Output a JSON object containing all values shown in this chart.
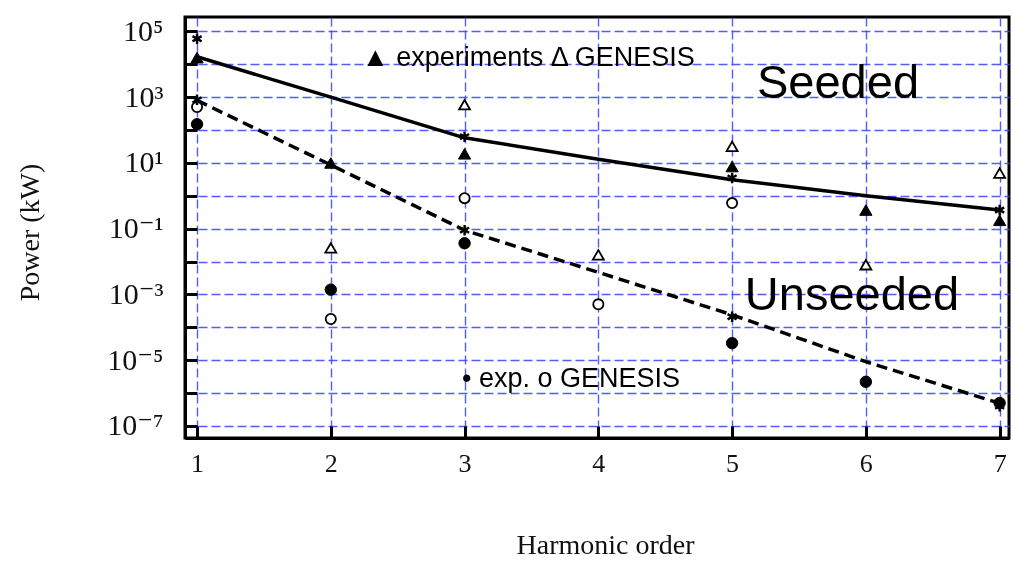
{
  "chart_data": {
    "type": "scatter",
    "xlabel": "Harmonic order",
    "ylabel": "Power (kW)",
    "annotations": [
      "▲ experiments Δ GENESIS",
      "Seeded",
      "Unseeded",
      "• exp. o GENESIS"
    ],
    "xlim": [
      0.91,
      7.07
    ],
    "xticks": [
      1,
      2,
      3,
      4,
      5,
      6,
      7
    ],
    "ylim": [
      4.3e-08,
      275000.0
    ],
    "yticks": [
      {
        "value": 100000,
        "label": "10⁵"
      },
      {
        "value": 10000,
        "label": null
      },
      {
        "value": 1000,
        "label": "10³"
      },
      {
        "value": 100,
        "label": null
      },
      {
        "value": 10,
        "label": "10¹"
      },
      {
        "value": 1,
        "label": null
      },
      {
        "value": 0.1,
        "label": "10⁻¹"
      },
      {
        "value": 0.01,
        "label": null
      },
      {
        "value": 0.001,
        "label": "10⁻³"
      },
      {
        "value": 0.0001,
        "label": null
      },
      {
        "value": 1e-05,
        "label": "10⁻⁵"
      },
      {
        "value": 1e-06,
        "label": null
      },
      {
        "value": 1e-07,
        "label": "10⁻⁷"
      }
    ],
    "log": "y",
    "grid": true,
    "series": [
      {
        "type": "line",
        "line_style": "solid",
        "color": "#000000",
        "x": [
          1,
          2,
          3,
          4,
          5,
          6,
          7
        ],
        "values": [
          17000,
          1000,
          58,
          13,
          3.1,
          1.0,
          0.37
        ]
      },
      {
        "type": "line",
        "line_style": "dashed",
        "color": "#000000",
        "x": [
          1,
          2,
          3,
          4,
          5,
          6,
          7
        ],
        "values": [
          800,
          8.7,
          0.09,
          0.0047,
          0.00024,
          9e-06,
          4.9e-07
        ]
      },
      {
        "marker": "triangle",
        "color": "#000000",
        "x": [
          1,
          2,
          3,
          5,
          6,
          7
        ],
        "values": [
          16000,
          10,
          19,
          7.8,
          0.37,
          0.18
        ]
      },
      {
        "marker": "triangle-open",
        "color": "#000000",
        "x": [
          2,
          3,
          4,
          5,
          6,
          7
        ],
        "values": [
          0.026,
          590,
          0.016,
          32,
          0.008,
          4.9
        ]
      },
      {
        "marker": "circle",
        "color": "#000000",
        "x": [
          1,
          2,
          3,
          5,
          6,
          7
        ],
        "values": [
          150,
          0.0014,
          0.036,
          3.3e-05,
          2.2e-06,
          5e-07
        ]
      },
      {
        "marker": "circle-open",
        "color": "#000000",
        "x": [
          1,
          2,
          3,
          4,
          5
        ],
        "values": [
          500,
          0.00018,
          0.85,
          0.0005,
          0.6
        ]
      },
      {
        "marker": "cross",
        "color": "#000000",
        "x": [
          1,
          3,
          5,
          7
        ],
        "values": [
          60000,
          63,
          3.5,
          0.37
        ]
      },
      {
        "marker": "cross",
        "color": "#000000",
        "x": [
          1,
          3,
          5,
          7
        ],
        "values": [
          830,
          0.09,
          0.00021,
          4e-07
        ]
      }
    ]
  }
}
